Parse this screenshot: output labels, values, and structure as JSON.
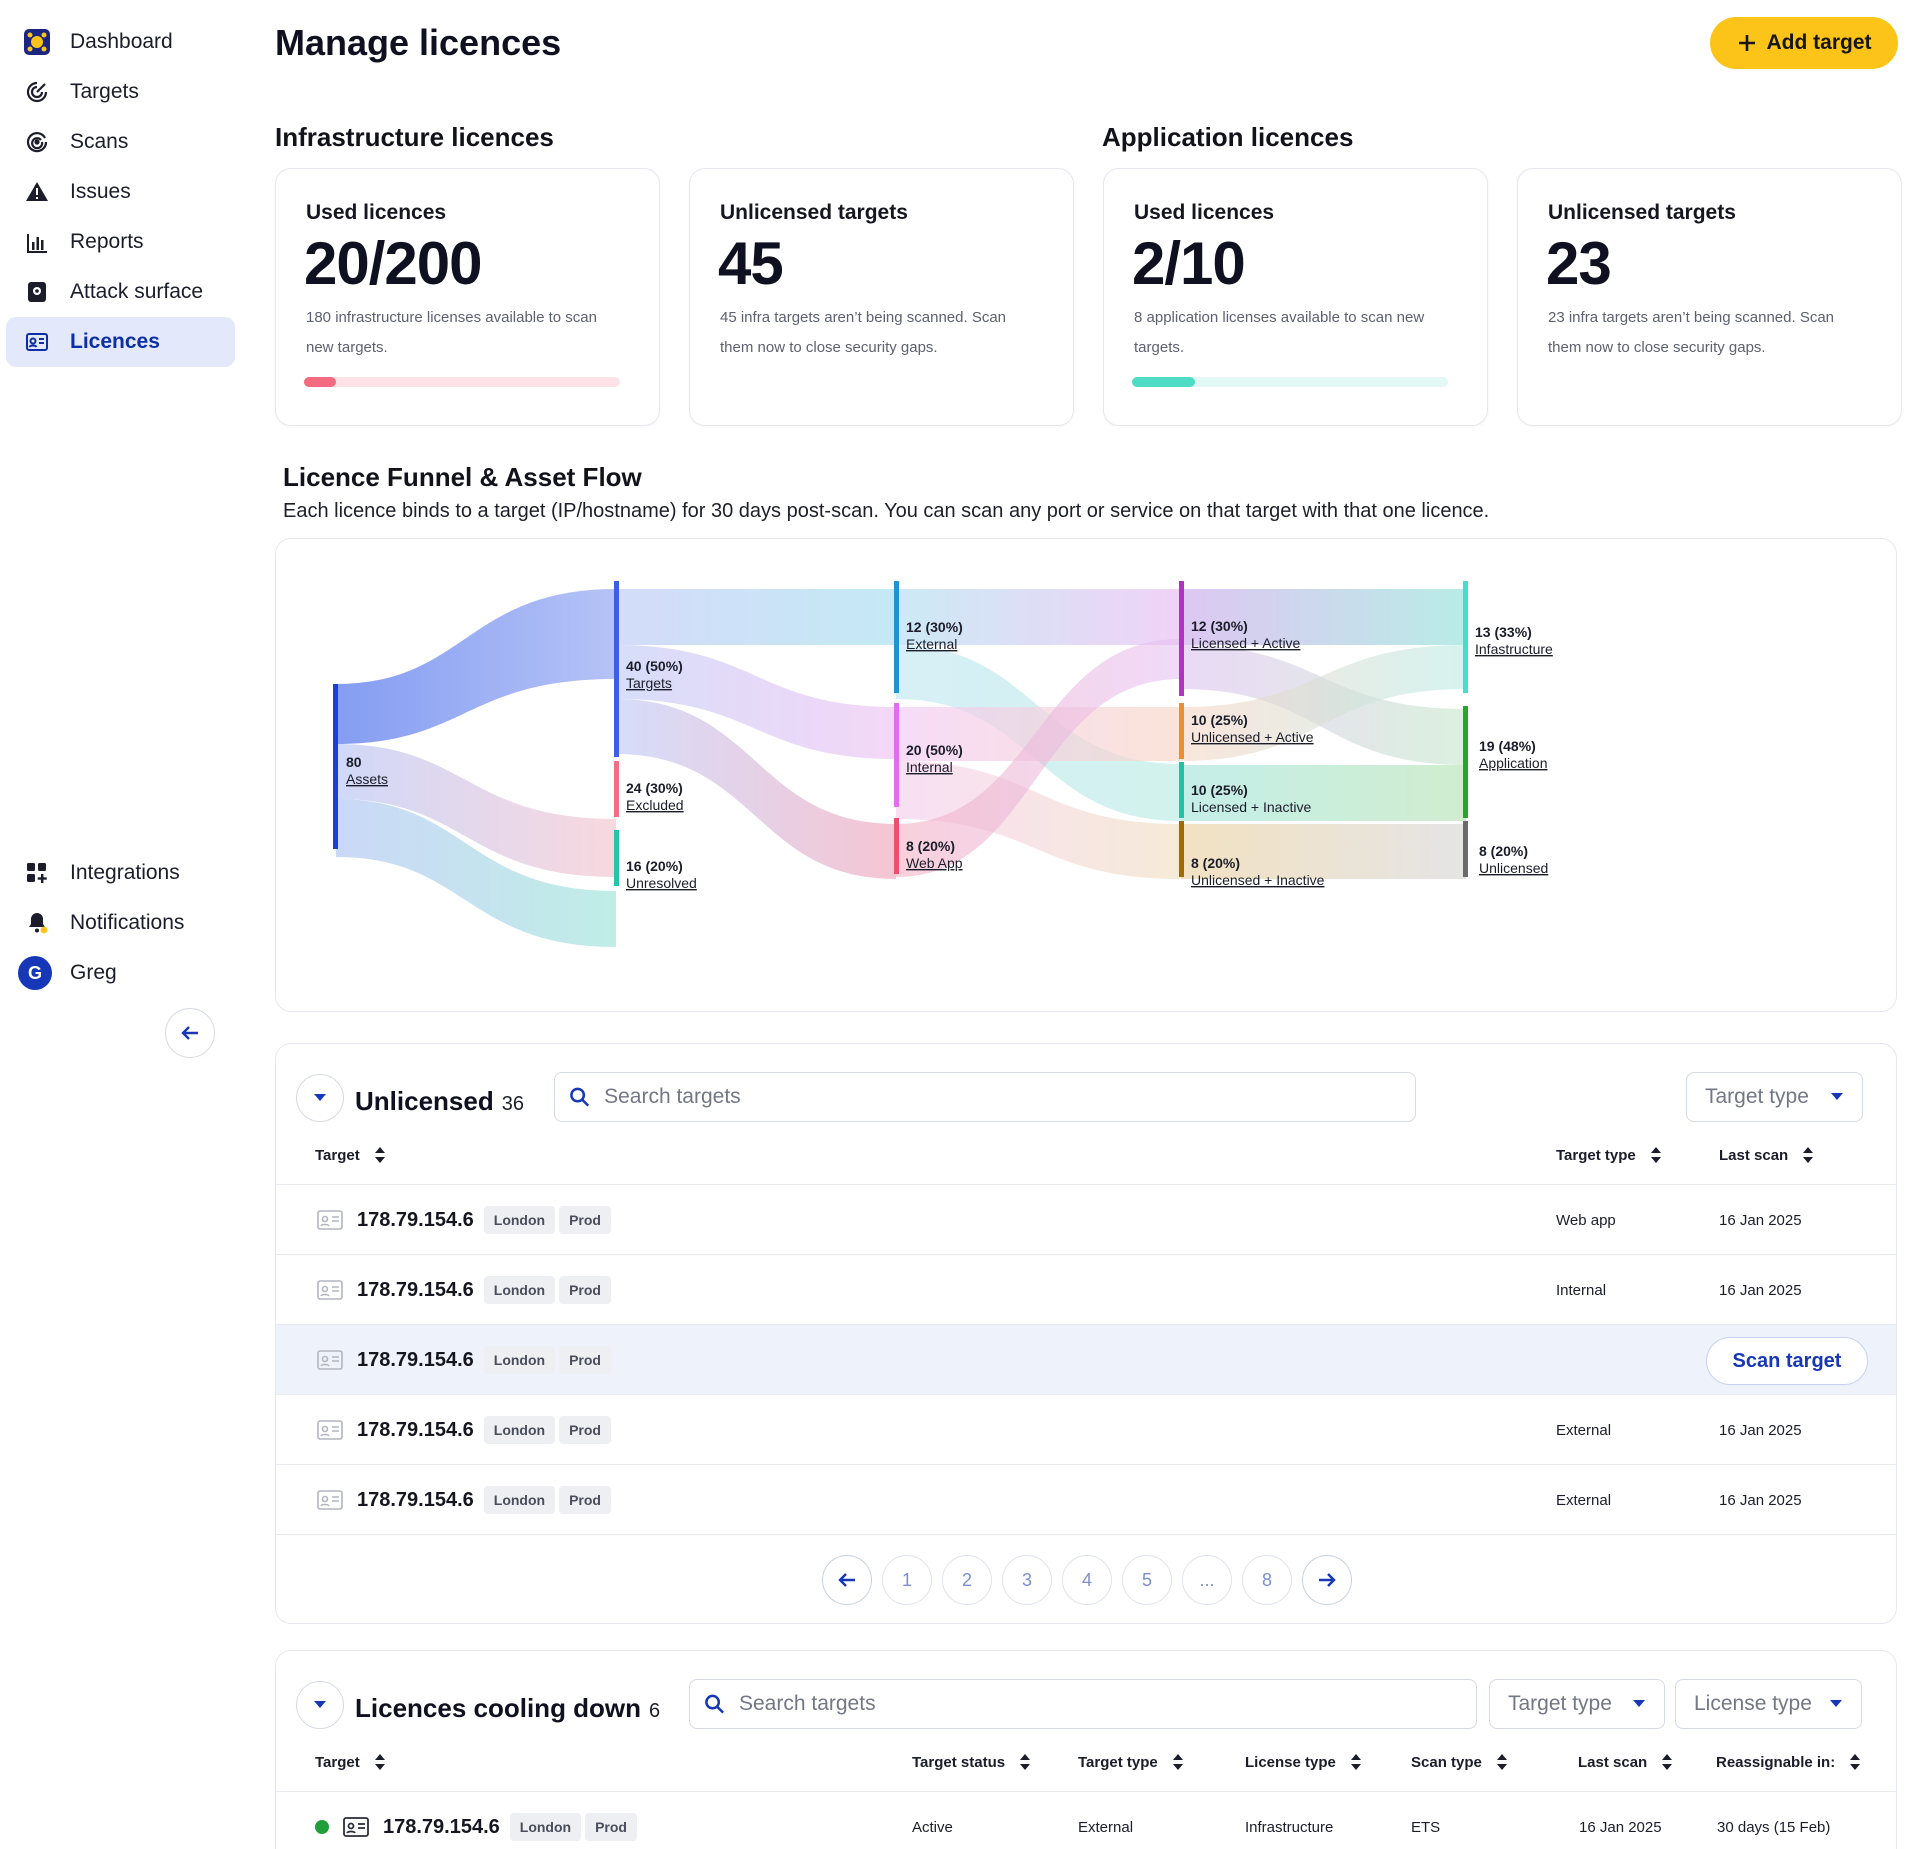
{
  "sidebar": {
    "items": [
      {
        "label": "Dashboard",
        "icon": "logo-icon"
      },
      {
        "label": "Targets",
        "icon": "target-icon"
      },
      {
        "label": "Scans",
        "icon": "scan-icon"
      },
      {
        "label": "Issues",
        "icon": "warning-icon"
      },
      {
        "label": "Reports",
        "icon": "chart-icon"
      },
      {
        "label": "Attack surface",
        "icon": "attack-surface-icon"
      },
      {
        "label": "Licences",
        "icon": "licence-icon",
        "active": true
      }
    ],
    "bottom": [
      {
        "label": "Integrations",
        "icon": "integrations-icon"
      },
      {
        "label": "Notifications",
        "icon": "bell-icon"
      },
      {
        "label": "Greg",
        "avatar": "G"
      }
    ]
  },
  "header": {
    "title": "Manage licences",
    "add_target": "Add target"
  },
  "infra": {
    "heading": "Infrastructure licences",
    "used": {
      "label": "Used licences",
      "value": "20/200",
      "desc": "180 infrastructure licenses available to scan new targets.",
      "progress": 0.1,
      "color": "#f26b80",
      "track": "#fde3e7"
    },
    "unlicensed": {
      "label": "Unlicensed targets",
      "value": "45",
      "desc": "45 infra targets aren’t being scanned. Scan them now to close security gaps."
    }
  },
  "app": {
    "heading": "Application licences",
    "used": {
      "label": "Used licences",
      "value": "2/10",
      "desc": "8 application licenses available to scan new targets.",
      "progress": 0.2,
      "color": "#4fdcc4",
      "track": "#e2f8f4"
    },
    "unlicensed": {
      "label": "Unlicensed targets",
      "value": "23",
      "desc": "23 infra targets aren’t being scanned. Scan them now to close security gaps."
    }
  },
  "funnel": {
    "title": "Licence Funnel & Asset Flow",
    "desc": "Each licence binds to a target (IP/hostname) for 30 days post-scan. You can scan any port or service on that target with that one licence.",
    "nodes": {
      "assets": {
        "value": "80",
        "label": "Assets"
      },
      "targets": {
        "value": "40 (50%)",
        "label": "Targets"
      },
      "excluded": {
        "value": "24 (30%)",
        "label": "Excluded"
      },
      "unresolved": {
        "value": "16 (20%)",
        "label": "Unresolved"
      },
      "external": {
        "value": "12 (30%)",
        "label": "External"
      },
      "internal": {
        "value": "20 (50%)",
        "label": "Internal"
      },
      "webapp": {
        "value": "8 (20%)",
        "label": "Web App"
      },
      "lic_active": {
        "value": "12 (30%)",
        "label": "Licensed + Active"
      },
      "unlic_active": {
        "value": "10 (25%)",
        "label": "Unlicensed + Active"
      },
      "lic_inactive": {
        "value": "10 (25%)",
        "label": "Licensed + Inactive"
      },
      "unlic_inactive": {
        "value": "8 (20%)",
        "label": "Unlicensed + Inactive"
      },
      "infrastucture": {
        "value": "13 (33%)",
        "label": "Infastructure"
      },
      "application": {
        "value": "19 (48%)",
        "label": "Application"
      },
      "unlicensed": {
        "value": "8 (20%)",
        "label": "Unlicensed"
      }
    }
  },
  "unlicensed_table": {
    "title": "Unlicensed",
    "count": "36",
    "search_placeholder": "Search targets",
    "filter": "Target type",
    "columns": {
      "target": "Target",
      "type": "Target type",
      "last_scan": "Last scan"
    },
    "rows": [
      {
        "ip": "178.79.154.6",
        "loc": "London",
        "env": "Prod",
        "type": "Web app",
        "last_scan": "16 Jan 2025"
      },
      {
        "ip": "178.79.154.6",
        "loc": "London",
        "env": "Prod",
        "type": "Internal",
        "last_scan": "16 Jan 2025"
      },
      {
        "ip": "178.79.154.6",
        "loc": "London",
        "env": "Prod",
        "type": "",
        "last_scan": "",
        "action": "Scan target"
      },
      {
        "ip": "178.79.154.6",
        "loc": "London",
        "env": "Prod",
        "type": "External",
        "last_scan": "16 Jan 2025"
      },
      {
        "ip": "178.79.154.6",
        "loc": "London",
        "env": "Prod",
        "type": "External",
        "last_scan": "16 Jan 2025"
      }
    ],
    "pages": [
      "1",
      "2",
      "3",
      "4",
      "5",
      "...",
      "8"
    ]
  },
  "cooling_table": {
    "title": "Licences cooling down",
    "count": "6",
    "search_placeholder": "Search targets",
    "filter1": "Target type",
    "filter2": "License type",
    "columns": {
      "target": "Target",
      "status": "Target status",
      "type": "Target type",
      "license": "License type",
      "scan_type": "Scan type",
      "last_scan": "Last scan",
      "reassign": "Reassignable in:"
    },
    "rows": [
      {
        "ip": "178.79.154.6",
        "loc": "London",
        "env": "Prod",
        "status": "Active",
        "type": "External",
        "license": "Infrastructure",
        "scan_type": "ETS",
        "last_scan": "16 Jan 2025",
        "reassign": "30 days (15 Feb)"
      }
    ]
  }
}
